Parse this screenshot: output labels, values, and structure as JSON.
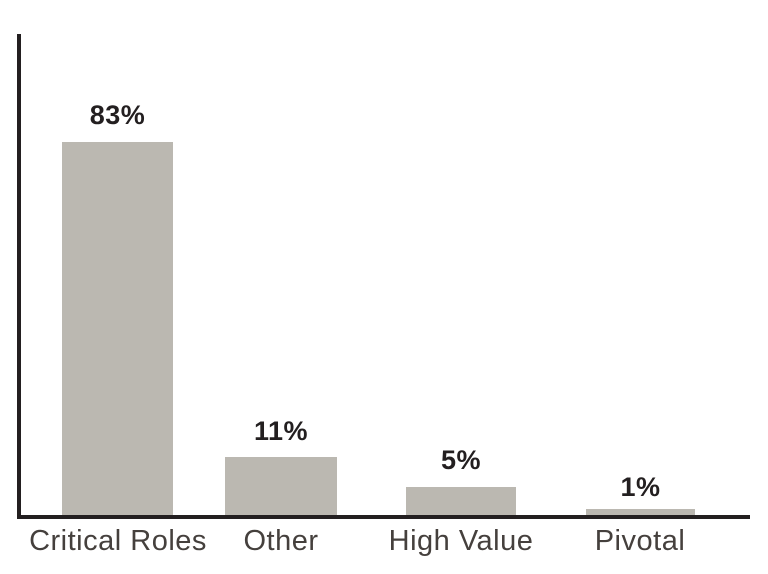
{
  "chart_data": {
    "type": "bar",
    "title": "",
    "xlabel": "",
    "ylabel": "",
    "categories": [
      "Critical Roles",
      "Other",
      "High Value",
      "Pivotal"
    ],
    "values": [
      83,
      11,
      5,
      1
    ],
    "value_labels": [
      "83%",
      "11%",
      "5%",
      "1%"
    ],
    "ylim": [
      0,
      100
    ],
    "grid": false,
    "legend": false,
    "axes_shown": [
      "left",
      "bottom"
    ],
    "tick_labels_shown": false,
    "colors": {
      "background": "#ffffff",
      "bar": "#bbb8b1",
      "axis": "#231f20",
      "value_label": "#231f20",
      "category_label": "#45403d"
    }
  }
}
